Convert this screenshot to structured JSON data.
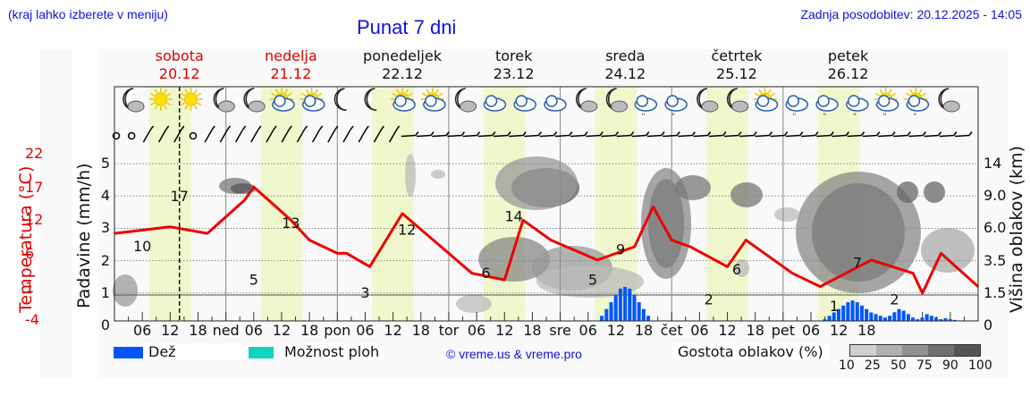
{
  "header": {
    "hint": "(kraj lahko izberete v meniju)",
    "title": "Punat 7 dni",
    "updated": "Zadnja posodobitev: 20.12.2025 - 14:05"
  },
  "days": [
    {
      "name": "sobota",
      "date": "20.12",
      "weekend": true
    },
    {
      "name": "nedelja",
      "date": "21.12",
      "weekend": true
    },
    {
      "name": "ponedeljek",
      "date": "22.12",
      "weekend": false
    },
    {
      "name": "torek",
      "date": "23.12",
      "weekend": false
    },
    {
      "name": "sreda",
      "date": "24.12",
      "weekend": false
    },
    {
      "name": "četrtek",
      "date": "25.12",
      "weekend": false
    },
    {
      "name": "petek",
      "date": "26.12",
      "weekend": false
    }
  ],
  "axes": {
    "temp_label": "Temperatura (°C)",
    "precip_label": "Padavine (mm/h)",
    "cloud_label": "Višina oblakov (km)",
    "temp_ticks": [
      "22",
      "17",
      "12",
      "6",
      "1",
      "-4"
    ],
    "precip_ticks": [
      "5",
      "4",
      "3",
      "2",
      "1",
      "0"
    ],
    "cloud_ticks": [
      "14",
      "9.0",
      "6.0",
      "3.5",
      "1.5",
      "0"
    ],
    "x_ticks": [
      "06",
      "12",
      "18",
      "ned",
      "06",
      "12",
      "18",
      "pon",
      "06",
      "12",
      "18",
      "tor",
      "06",
      "12",
      "18",
      "sre",
      "06",
      "12",
      "18",
      "čet",
      "06",
      "12",
      "18",
      "pet",
      "06",
      "12",
      "18"
    ]
  },
  "legend": {
    "rain_label": "Dež",
    "rain_color": "#0055ff",
    "showers_label": "Možnost ploh",
    "showers_color": "#11d4c0",
    "copyright": "© vreme.us & vreme.pro",
    "cloud_density_label": "Gostota oblakov (%)",
    "cloud_density_ticks": [
      "10",
      "25",
      "50",
      "75",
      "90",
      "100"
    ],
    "cloud_density_colors": [
      "#d0d0d0",
      "#b0b0b0",
      "#909090",
      "#707070",
      "#555555"
    ]
  },
  "colors": {
    "temperature_line": "#ee0000",
    "daylight_band": "#f0f7cc",
    "title_blue": "#1010e0",
    "weekend_red": "#dd0000"
  },
  "chart_data": {
    "type": "line",
    "title": "Punat 7 dni",
    "xlabel": "",
    "ylabel": "Temperatura (°C)",
    "x_range": [
      "20.12 00:00",
      "27.12 00:00"
    ],
    "now_marker": "20.12 14:00",
    "series": [
      {
        "name": "Temperatura (°C)",
        "color": "#ee0000",
        "points_hours": [
          0,
          12,
          20,
          28,
          30,
          38,
          42,
          48,
          50,
          55,
          62,
          72,
          77,
          84,
          88,
          94,
          104,
          112,
          116,
          120,
          124,
          132,
          136,
          146,
          152,
          163,
          172,
          174,
          178,
          186
        ],
        "points_values": [
          10,
          11,
          10,
          15,
          17,
          12,
          9,
          7,
          7,
          5,
          13,
          7,
          4,
          3,
          12,
          9,
          6,
          8,
          14,
          9,
          8,
          5,
          9,
          4,
          2,
          6,
          4,
          1,
          7,
          2
        ],
        "labeled_extrema": [
          {
            "hour": 6,
            "value": 10
          },
          {
            "hour": 14,
            "value": 17
          },
          {
            "hour": 30,
            "value": 5
          },
          {
            "hour": 38,
            "value": 13
          },
          {
            "hour": 54,
            "value": 3
          },
          {
            "hour": 63,
            "value": 12
          },
          {
            "hour": 80,
            "value": 6
          },
          {
            "hour": 86,
            "value": 14
          },
          {
            "hour": 103,
            "value": 5
          },
          {
            "hour": 109,
            "value": 9
          },
          {
            "hour": 128,
            "value": 2
          },
          {
            "hour": 134,
            "value": 6
          },
          {
            "hour": 155,
            "value": 1
          },
          {
            "hour": 160,
            "value": 7
          },
          {
            "hour": 168,
            "value": 2
          }
        ]
      },
      {
        "name": "Dež (mm/h)",
        "color": "#0055ff",
        "type": "bar",
        "hours": [
          105,
          106,
          107,
          108,
          109,
          110,
          111,
          112,
          113,
          114,
          115,
          153,
          154,
          155,
          156,
          157,
          158,
          159,
          160,
          161,
          162,
          163,
          164,
          165,
          166,
          167,
          168,
          169,
          170,
          171,
          172,
          173,
          174,
          175,
          176,
          177,
          178,
          179,
          180,
          181
        ],
        "values": [
          0.15,
          0.35,
          0.55,
          0.75,
          0.95,
          1.0,
          0.95,
          0.75,
          0.55,
          0.35,
          0.15,
          0.05,
          0.15,
          0.25,
          0.35,
          0.45,
          0.55,
          0.6,
          0.55,
          0.45,
          0.35,
          0.25,
          0.2,
          0.15,
          0.1,
          0.15,
          0.25,
          0.35,
          0.3,
          0.2,
          0.1,
          0.05,
          0.1,
          0.2,
          0.15,
          0.1,
          0.05,
          0.08,
          0.05,
          0.03
        ]
      }
    ],
    "y_axes": {
      "temperature": {
        "ticks": [
          22,
          17,
          12,
          6,
          1,
          -4
        ],
        "range": [
          -4,
          24
        ]
      },
      "precipitation": {
        "ticks": [
          0,
          1,
          2,
          3,
          4,
          5
        ],
        "range": [
          0,
          5.5
        ]
      },
      "cloud_height_km": {
        "ticks": [
          0,
          1.5,
          3.5,
          6.0,
          9.0,
          14
        ],
        "range": [
          0,
          16
        ]
      }
    },
    "x_tick_labels": [
      "06",
      "12",
      "18",
      "ned",
      "06",
      "12",
      "18",
      "pon",
      "06",
      "12",
      "18",
      "tor",
      "06",
      "12",
      "18",
      "sre",
      "06",
      "12",
      "18",
      "čet",
      "06",
      "12",
      "18",
      "pet",
      "06",
      "12",
      "18"
    ],
    "day_labels": [
      "sobota 20.12",
      "nedelja 21.12",
      "ponedeljek 22.12",
      "torek 23.12",
      "sreda 24.12",
      "četrtek 25.12",
      "petek 26.12"
    ],
    "weather_icons": [
      "night-partly-cloudy",
      "sunny",
      "sunny",
      "night-partly-cloudy",
      "night-partly-cloudy",
      "sun-cloud",
      "sun-cloud",
      "night-clear",
      "night-clear",
      "sun-cloud",
      "sun-cloud",
      "night-cloudy",
      "cloudy",
      "cloudy",
      "cloudy",
      "night-cloudy",
      "night-cloudy",
      "cloudy-drizzle",
      "cloudy-drizzle",
      "night-cloudy",
      "night-cloudy",
      "sun-cloud",
      "cloudy-drizzle",
      "cloudy-drizzle",
      "cloudy-drizzle",
      "sun-cloud-drizzle",
      "sun-cloud-drizzle",
      "night-cloudy"
    ],
    "grid": true,
    "legend_position": "bottom"
  }
}
